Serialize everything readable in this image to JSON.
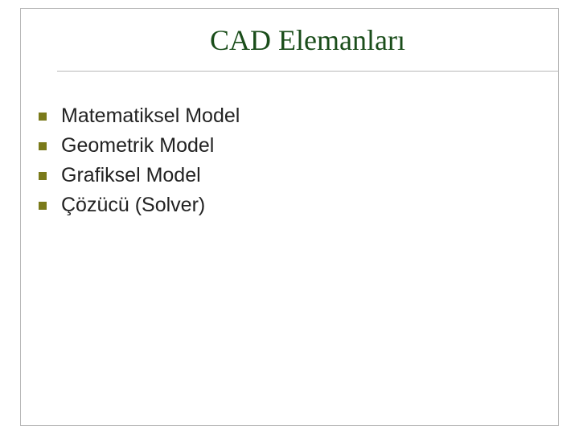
{
  "slide": {
    "title": "CAD Elemanları",
    "title_color": "#1a4d1a",
    "title_fontsize": 36,
    "title_fontfamily": "Times New Roman",
    "bullet_marker_color": "#7a7a1a",
    "bullet_marker_size": 10,
    "bullet_text_color": "#222222",
    "bullet_fontsize": 25,
    "bullet_fontfamily": "Arial",
    "frame_border_color": "#b8b8b8",
    "background_color": "#ffffff",
    "bullets": [
      {
        "text": "Matematiksel Model"
      },
      {
        "text": "Geometrik Model"
      },
      {
        "text": "Grafiksel Model"
      },
      {
        "text": "Çözücü (Solver)"
      }
    ]
  }
}
